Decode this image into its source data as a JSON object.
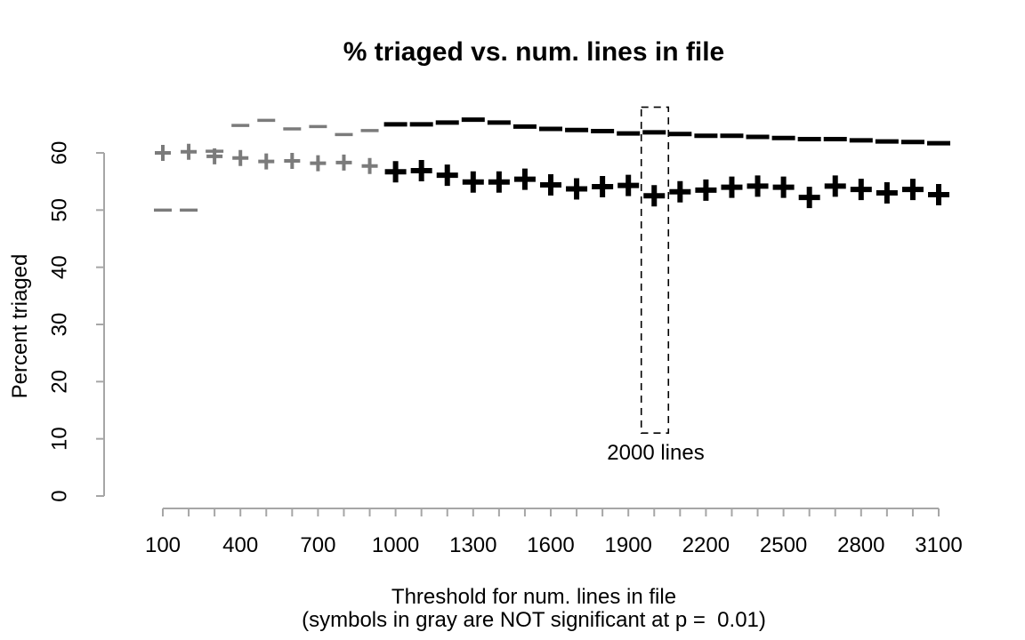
{
  "chart_data": {
    "type": "scatter",
    "title": "% triaged vs. num. lines in file",
    "ylabel": "Percent triaged",
    "xlabel_line1": "Threshold for num. lines in file",
    "xlabel_line2": "(symbols in gray are NOT significant at p =  0.01)",
    "xlim": [
      100,
      3100
    ],
    "ylim": [
      0,
      60
    ],
    "y_ticks": [
      0,
      10,
      20,
      30,
      40,
      50,
      60
    ],
    "x_tick_step": 100,
    "x_label_ticks": [
      100,
      400,
      700,
      1000,
      1300,
      1600,
      1900,
      2200,
      2500,
      2800,
      3100
    ],
    "grid": false,
    "legend": "none",
    "significance_threshold_x": 1000,
    "annotation": {
      "x": 2000,
      "label": "2000 lines",
      "box_x_range": [
        1950,
        2055
      ],
      "box_y_range": [
        11,
        68
      ]
    },
    "colors": {
      "significant": "#000000",
      "not_significant": "#7b7b7b",
      "axis": "#a6a6a6",
      "text": "#000000"
    },
    "x": [
      100,
      200,
      300,
      400,
      500,
      600,
      700,
      800,
      900,
      1000,
      1100,
      1200,
      1300,
      1400,
      1500,
      1600,
      1700,
      1800,
      1900,
      2000,
      2100,
      2200,
      2300,
      2400,
      2500,
      2600,
      2700,
      2800,
      2900,
      3000,
      3100
    ],
    "series": [
      {
        "name": "upper series (dash symbol)",
        "symbol": "dash",
        "values": [
          50.0,
          50.0,
          60.3,
          64.8,
          65.7,
          64.2,
          64.6,
          63.2,
          63.9,
          65.0,
          65.0,
          65.3,
          65.8,
          65.3,
          64.6,
          64.2,
          64.0,
          63.8,
          63.4,
          63.6,
          63.3,
          63.0,
          63.0,
          62.8,
          62.6,
          62.4,
          62.4,
          62.2,
          62.0,
          61.9,
          61.7
        ]
      },
      {
        "name": "lower series (plus symbol)",
        "symbol": "plus",
        "values": [
          60.0,
          60.2,
          59.4,
          59.1,
          58.5,
          58.6,
          58.2,
          58.3,
          57.7,
          56.7,
          56.9,
          56.1,
          54.9,
          54.9,
          55.4,
          54.4,
          53.7,
          54.1,
          54.3,
          52.5,
          53.2,
          53.5,
          54.0,
          54.2,
          54.0,
          52.2,
          54.2,
          53.6,
          53.0,
          53.6,
          52.7
        ]
      }
    ]
  }
}
